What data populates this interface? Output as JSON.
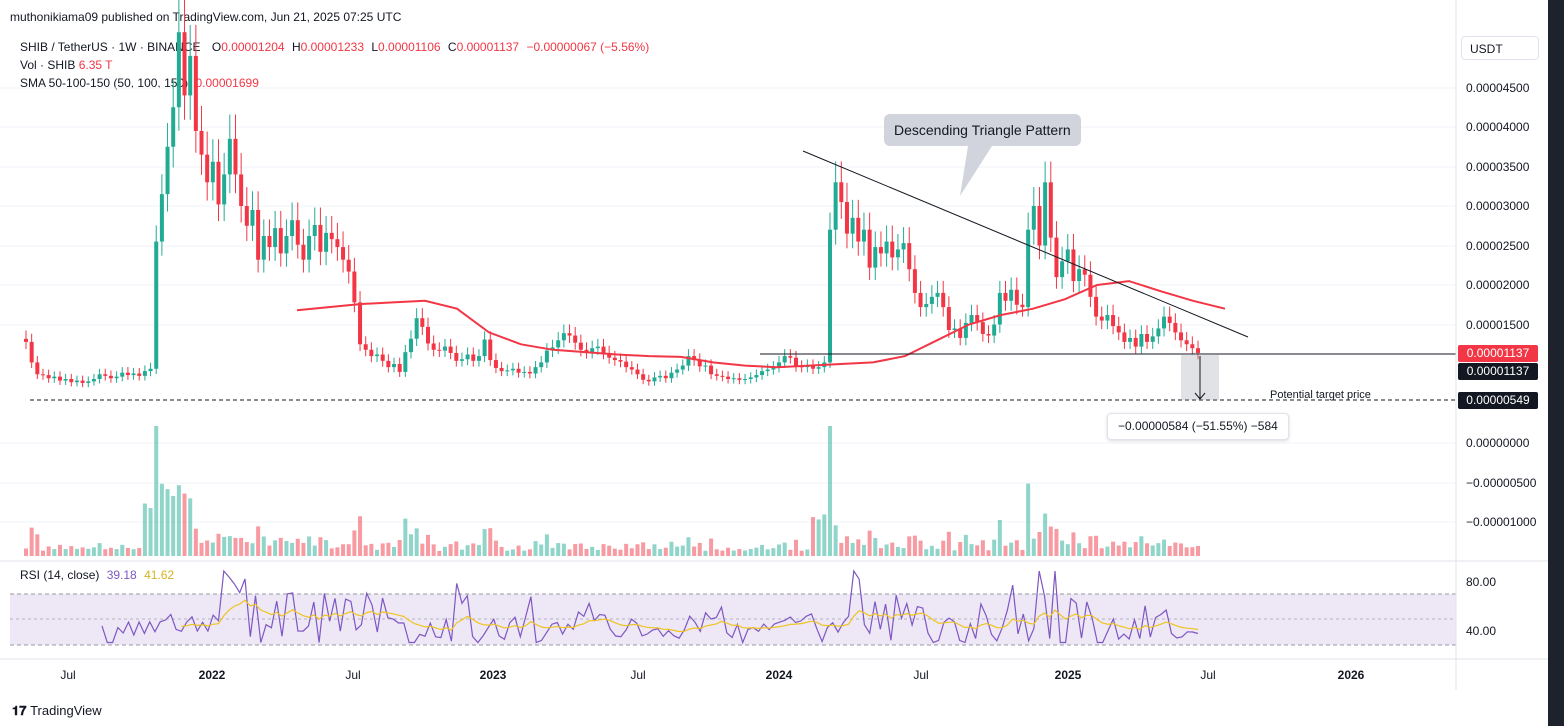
{
  "header": {
    "published": "muthonikiama09 published on TradingView.com, Jun 21, 2025 07:25 UTC"
  },
  "legend": {
    "symbol": "SHIB / TetherUS · 1W · BINANCE",
    "ohlc": {
      "o_label": "O",
      "o": "0.00001204",
      "h_label": "H",
      "h": "0.00001233",
      "l_label": "L",
      "l": "0.00001106",
      "c_label": "C",
      "c": "0.00001137",
      "change": "−0.00000067 (−5.56%)"
    },
    "vol_label": "Vol · SHIB",
    "vol_value": "6.35 T",
    "sma_label": "SMA 50-100-150 (50, 100, 150)",
    "sma_value": "0.00001699",
    "rsi_label": "RSI (14, close)",
    "rsi_value": "39.18",
    "rsi_ma_value": "41.62"
  },
  "currency_button": "USDT",
  "price_axis": [
    "0.00004500",
    "0.00004000",
    "0.00003500",
    "0.00003000",
    "0.00002500",
    "0.00002000",
    "0.00001500",
    "0.00000000",
    "−0.00000500",
    "−0.00001000"
  ],
  "price_tags": {
    "last_price": "0.00001137",
    "support": "0.00001137",
    "target": "0.00000549"
  },
  "rsi_axis": [
    "80.00",
    "40.00"
  ],
  "time_axis": [
    {
      "label": "Jul",
      "bold": false
    },
    {
      "label": "2022",
      "bold": true
    },
    {
      "label": "Jul",
      "bold": false
    },
    {
      "label": "2023",
      "bold": true
    },
    {
      "label": "Jul",
      "bold": false
    },
    {
      "label": "2024",
      "bold": true
    },
    {
      "label": "Jul",
      "bold": false
    },
    {
      "label": "2025",
      "bold": true
    },
    {
      "label": "Jul",
      "bold": false
    },
    {
      "label": "2026",
      "bold": true
    }
  ],
  "annotations": {
    "pattern_callout": "Descending Triangle Pattern",
    "target_label": "Potential target price",
    "measure": "−0.00000584 (−51.55%) −584"
  },
  "footer": {
    "brand": "TradingView"
  },
  "colors": {
    "up": "#22ab94",
    "down": "#f23645",
    "sma": "#f23645",
    "rsi": "#7e57c2",
    "rsi_ma": "#f0c420",
    "rsi_band": "#ede7f6"
  },
  "chart_data": {
    "type": "candlestick",
    "title": "SHIB / TetherUS · 1W · BINANCE",
    "ylim": [
      -1.2e-05,
      4.8e-05
    ],
    "weekly_closes": [
      1.28e-05,
      1.02e-05,
      8.7e-06,
      8.6e-06,
      8.2e-06,
      8.4e-06,
      7.9e-06,
      8.1e-06,
      7.7e-06,
      7.9e-06,
      7.6e-06,
      7.8e-06,
      8.1e-06,
      8.7e-06,
      8.5e-06,
      8.2e-06,
      8.4e-06,
      8.9e-06,
      8.6e-06,
      8.8e-06,
      8.5e-06,
      9.1e-06,
      9.4e-06,
      2.55e-05,
      3.15e-05,
      3.75e-05,
      4.25e-05,
      5.2e-05,
      4.4e-05,
      4.9e-05,
      3.95e-05,
      3.65e-05,
      3.3e-05,
      3.56e-05,
      3.02e-05,
      3.4e-05,
      3.85e-05,
      3.4e-05,
      3e-05,
      2.75e-05,
      2.95e-05,
      2.32e-05,
      2.62e-05,
      2.48e-05,
      2.72e-05,
      2.4e-05,
      2.62e-05,
      2.82e-05,
      2.51e-05,
      2.32e-05,
      2.62e-05,
      2.76e-05,
      2.42e-05,
      2.66e-05,
      2.58e-05,
      2.48e-05,
      2.32e-05,
      2.17e-05,
      1.78e-05,
      1.25e-05,
      1.18e-05,
      1.1e-05,
      1.12e-05,
      1.04e-05,
      9.6e-06,
      1e-05,
      9e-06,
      1.15e-05,
      1.32e-05,
      1.58e-05,
      1.47e-05,
      1.26e-05,
      1.18e-05,
      1.17e-05,
      1.22e-05,
      1.14e-05,
      1.04e-05,
      1.06e-05,
      1.12e-05,
      1.04e-05,
      1.1e-05,
      1.31e-05,
      1.05e-05,
      9.5e-06,
      9.1e-06,
      9.2e-06,
      9.4e-06,
      8.9e-06,
      9e-06,
      8.8e-06,
      9.6e-06,
      1.02e-05,
      1.17e-05,
      1.21e-05,
      1.3e-05,
      1.39e-05,
      1.36e-05,
      1.27e-05,
      1.18e-05,
      1.15e-05,
      1.2e-05,
      1.22e-05,
      1.14e-05,
      1.08e-05,
      1.05e-05,
      1.03e-05,
      9.6e-06,
      9.3e-06,
      8.7e-06,
      8e-06,
      7.8e-06,
      8.3e-06,
      8.5e-06,
      8.2e-06,
      8.9e-06,
      9.3e-06,
      9.8e-06,
      1.1e-05,
      1.05e-05,
      9.7e-06,
      9.8e-06,
      8.7e-06,
      8.5e-06,
      8.4e-06,
      8.1e-06,
      8.2e-06,
      8e-06,
      8.1e-06,
      8.3e-06,
      8.6e-06,
      9.1e-06,
      9.3e-06,
      9.6e-06,
      1.02e-05,
      1.1e-05,
      1.08e-05,
      9.7e-06,
      9.6e-06,
      9.8e-06,
      9.4e-06,
      9.6e-06,
      1.02e-05,
      2.7e-05,
      3.3e-05,
      3.05e-05,
      2.65e-05,
      2.85e-05,
      2.55e-05,
      2.7e-05,
      2.22e-05,
      2.48e-05,
      2.4e-05,
      2.55e-05,
      2.35e-05,
      2.45e-05,
      2.53e-05,
      2.2e-05,
      1.9e-05,
      1.72e-05,
      1.76e-05,
      1.85e-05,
      1.9e-05,
      1.72e-05,
      1.43e-05,
      1.45e-05,
      1.33e-05,
      1.52e-05,
      1.62e-05,
      1.53e-05,
      1.38e-05,
      1.36e-05,
      1.5e-05,
      1.9e-05,
      1.8e-05,
      1.94e-05,
      1.75e-05,
      1.72e-05,
      2.7e-05,
      3e-05,
      2.5e-05,
      3.3e-05,
      2.6e-05,
      2.1e-05,
      2.3e-05,
      2.45e-05,
      2.05e-05,
      2.2e-05,
      2.13e-05,
      1.85e-05,
      1.6e-05,
      1.55e-05,
      1.62e-05,
      1.48e-05,
      1.4e-05,
      1.28e-05,
      1.33e-05,
      1.22e-05,
      1.38e-05,
      1.28e-05,
      1.35e-05,
      1.45e-05,
      1.6e-05,
      1.52e-05,
      1.4e-05,
      1.3e-05,
      1.25e-05,
      1.2e-05,
      1.14e-05
    ],
    "sma_50_sample": [
      1.68e-05,
      1.72e-05,
      1.76e-05,
      1.78e-05,
      1.8e-05,
      1.7e-05,
      1.4e-05,
      1.25e-05,
      1.18e-05,
      1.15e-05,
      1.12e-05,
      1.1e-05,
      1.09e-05,
      1.02e-05,
      9.8e-06,
      9.6e-06,
      9.8e-06,
      1e-05,
      1.02e-05,
      1.1e-05,
      1.3e-05,
      1.5e-05,
      1.62e-05,
      1.7e-05,
      1.82e-05,
      2e-05,
      2.05e-05,
      1.92e-05,
      1.8e-05,
      1.7e-05
    ],
    "rsi_range": [
      30,
      80
    ],
    "lines": {
      "descending_resistance": "from 2024 high toward Jul 2025",
      "horizontal_support": 1.137e-05,
      "target": 5.49e-06
    }
  }
}
